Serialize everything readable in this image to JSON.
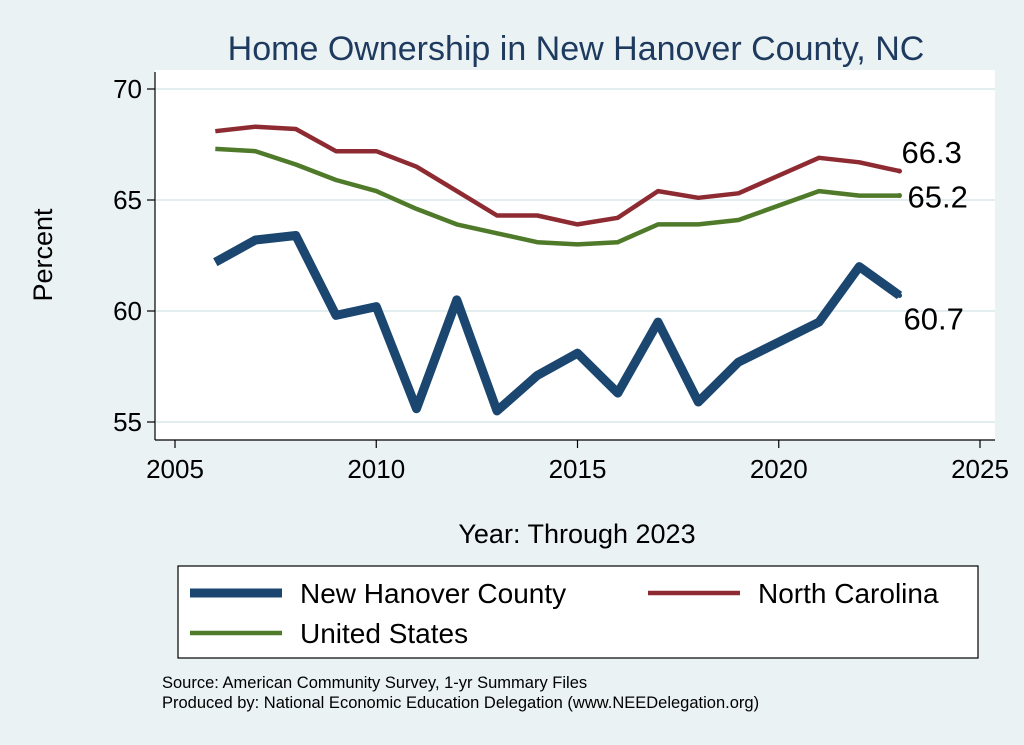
{
  "chart_data": {
    "type": "line",
    "title": "Home Ownership in New Hanover County, NC",
    "xlabel": "Year: Through 2023",
    "ylabel": "Percent",
    "xlim": [
      2005,
      2025
    ],
    "ylim": [
      54.5,
      70.5
    ],
    "xticks": [
      2005,
      2010,
      2015,
      2020,
      2025
    ],
    "yticks": [
      55,
      60,
      65,
      70
    ],
    "grid": "horizontal",
    "legend_position": "bottom",
    "x": [
      2006,
      2007,
      2008,
      2009,
      2010,
      2011,
      2012,
      2013,
      2014,
      2015,
      2016,
      2017,
      2018,
      2019,
      2021,
      2022,
      2023
    ],
    "series": [
      {
        "name": "New Hanover County",
        "color": "#1a4670",
        "line_width": "thick",
        "values": [
          62.2,
          63.2,
          63.4,
          59.8,
          60.2,
          55.6,
          60.5,
          55.5,
          57.1,
          58.1,
          56.3,
          59.5,
          55.9,
          57.7,
          59.5,
          62.0,
          60.7
        ],
        "end_label": "60.7"
      },
      {
        "name": "North Carolina",
        "color": "#8e2b32",
        "line_width": "medium",
        "values": [
          68.1,
          68.3,
          68.2,
          67.2,
          67.2,
          66.5,
          65.4,
          64.3,
          64.3,
          63.9,
          64.2,
          65.4,
          65.1,
          65.3,
          66.9,
          66.7,
          66.3
        ],
        "end_label": "66.3"
      },
      {
        "name": "United States",
        "color": "#4f7a2a",
        "line_width": "medium",
        "values": [
          67.3,
          67.2,
          66.6,
          65.9,
          65.4,
          64.6,
          63.9,
          63.5,
          63.1,
          63.0,
          63.1,
          63.9,
          63.9,
          64.1,
          65.4,
          65.2,
          65.2
        ],
        "end_label": "65.2"
      }
    ]
  },
  "source_line": "Source: American Community Survey, 1-yr Summary Files",
  "produced_line": "Produced by: National Economic Education Delegation (www.NEEDelegation.org)"
}
